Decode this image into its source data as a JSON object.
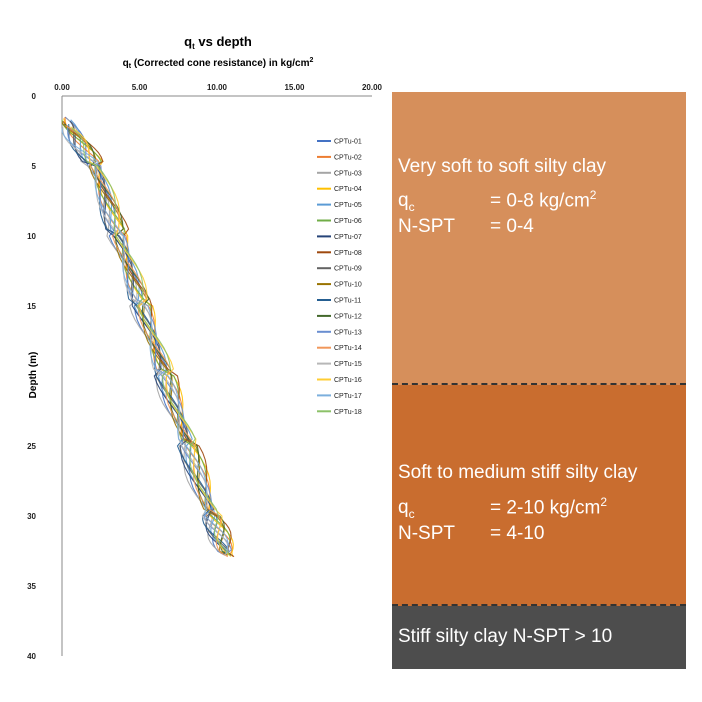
{
  "chart_data": {
    "type": "line",
    "title": "q",
    "title_sub": "t",
    "title_rest": " vs depth",
    "subtitle": "q",
    "subtitle_sub": "t",
    "subtitle_rest": " (Corrected cone resistance) in kg/cm",
    "subtitle_sup": "2",
    "ylabel": "Depth (m)",
    "xlim": [
      0,
      20
    ],
    "ylim": [
      0,
      40
    ],
    "y_reversed": true,
    "x_axis_position": "top",
    "xticks": [
      "0.00",
      "5.00",
      "10.00",
      "15.00",
      "20.00"
    ],
    "yticks": [
      "0",
      "5",
      "10",
      "15",
      "",
      "25",
      "30",
      "35",
      "40"
    ],
    "legend_position": "right",
    "series": [
      {
        "name": "CPTu-01",
        "color": "#4472c4",
        "values": [
          [
            0.2,
            1.5
          ],
          [
            2,
            5
          ],
          [
            3.5,
            10
          ],
          [
            5,
            15
          ],
          [
            6.5,
            20
          ],
          [
            8,
            25
          ],
          [
            9.5,
            30
          ],
          [
            10.5,
            32.8
          ]
        ]
      },
      {
        "name": "CPTu-02",
        "color": "#ed7d31",
        "values": [
          [
            0.3,
            1.5
          ],
          [
            2.2,
            5
          ],
          [
            3.7,
            10
          ],
          [
            5.2,
            15
          ],
          [
            6.7,
            20
          ],
          [
            8.2,
            25
          ],
          [
            9.7,
            30
          ],
          [
            10.8,
            32.8
          ]
        ]
      },
      {
        "name": "CPTu-03",
        "color": "#a5a5a5",
        "values": [
          [
            0.1,
            1.6
          ],
          [
            1.8,
            5
          ],
          [
            3.3,
            10
          ],
          [
            4.8,
            15
          ],
          [
            6.3,
            20
          ],
          [
            7.8,
            25
          ],
          [
            9.3,
            30
          ],
          [
            10.3,
            32.7
          ]
        ]
      },
      {
        "name": "CPTu-04",
        "color": "#ffc000",
        "values": [
          [
            0.4,
            1.6
          ],
          [
            2.4,
            5
          ],
          [
            3.9,
            10
          ],
          [
            5.4,
            15
          ],
          [
            6.9,
            20
          ],
          [
            8.4,
            25
          ],
          [
            9.9,
            30
          ],
          [
            11,
            32.9
          ]
        ]
      },
      {
        "name": "CPTu-05",
        "color": "#5b9bd5",
        "values": [
          [
            0.2,
            1.7
          ],
          [
            2.1,
            5
          ],
          [
            3.6,
            10
          ],
          [
            5.1,
            15
          ],
          [
            6.6,
            20
          ],
          [
            8.1,
            25
          ],
          [
            9.6,
            30
          ],
          [
            10.6,
            32.6
          ]
        ]
      },
      {
        "name": "CPTu-06",
        "color": "#70ad47",
        "values": [
          [
            0.3,
            1.7
          ],
          [
            2.3,
            5
          ],
          [
            3.8,
            10
          ],
          [
            5.3,
            15
          ],
          [
            6.8,
            20
          ],
          [
            8.3,
            25
          ],
          [
            9.8,
            30
          ],
          [
            10.9,
            32.8
          ]
        ]
      },
      {
        "name": "CPTu-07",
        "color": "#264478",
        "values": [
          [
            0.1,
            1.8
          ],
          [
            1.9,
            5
          ],
          [
            3.4,
            10
          ],
          [
            4.9,
            15
          ],
          [
            6.4,
            20
          ],
          [
            7.9,
            25
          ],
          [
            9.4,
            30
          ],
          [
            10.4,
            32.7
          ]
        ]
      },
      {
        "name": "CPTu-08",
        "color": "#9e480e",
        "values": [
          [
            0.5,
            1.8
          ],
          [
            2.5,
            5
          ],
          [
            4,
            10
          ],
          [
            5.5,
            15
          ],
          [
            7,
            20
          ],
          [
            8.5,
            25
          ],
          [
            10,
            30
          ],
          [
            11.1,
            32.9
          ]
        ]
      },
      {
        "name": "CPTu-09",
        "color": "#636363",
        "values": [
          [
            0.2,
            1.9
          ],
          [
            2,
            5
          ],
          [
            3.5,
            10
          ],
          [
            5,
            15
          ],
          [
            6.5,
            20
          ],
          [
            8,
            25
          ],
          [
            9.5,
            30
          ],
          [
            10.5,
            32.8
          ]
        ]
      },
      {
        "name": "CPTu-10",
        "color": "#997300",
        "values": [
          [
            0.3,
            1.9
          ],
          [
            2.2,
            5
          ],
          [
            3.7,
            10
          ],
          [
            5.2,
            15
          ],
          [
            6.7,
            20
          ],
          [
            8.2,
            25
          ],
          [
            9.7,
            30
          ],
          [
            10.7,
            32.8
          ]
        ]
      },
      {
        "name": "CPTu-11",
        "color": "#255e91",
        "values": [
          [
            0.1,
            2
          ],
          [
            1.9,
            5
          ],
          [
            3.4,
            10
          ],
          [
            4.9,
            15
          ],
          [
            6.4,
            20
          ],
          [
            7.9,
            25
          ],
          [
            9.4,
            30
          ],
          [
            10.4,
            32.7
          ]
        ]
      },
      {
        "name": "CPTu-12",
        "color": "#43682b",
        "values": [
          [
            0.4,
            2
          ],
          [
            2.3,
            5
          ],
          [
            3.8,
            10
          ],
          [
            5.3,
            15
          ],
          [
            6.8,
            20
          ],
          [
            8.3,
            25
          ],
          [
            9.8,
            30
          ],
          [
            10.9,
            32.8
          ]
        ]
      },
      {
        "name": "CPTu-13",
        "color": "#698ed0",
        "values": [
          [
            0.2,
            2.1
          ],
          [
            2.1,
            5
          ],
          [
            3.6,
            10
          ],
          [
            5.1,
            15
          ],
          [
            6.6,
            20
          ],
          [
            8.1,
            25
          ],
          [
            9.6,
            30
          ],
          [
            10.6,
            32.7
          ]
        ]
      },
      {
        "name": "CPTu-14",
        "color": "#f1975a",
        "values": [
          [
            0.3,
            2.1
          ],
          [
            2.2,
            5
          ],
          [
            3.7,
            10
          ],
          [
            5.2,
            15
          ],
          [
            6.7,
            20
          ],
          [
            8.2,
            25
          ],
          [
            9.7,
            30
          ],
          [
            10.7,
            32.9
          ]
        ]
      },
      {
        "name": "CPTu-15",
        "color": "#b7b7b7",
        "values": [
          [
            0.1,
            2.2
          ],
          [
            2,
            5
          ],
          [
            3.5,
            10
          ],
          [
            5,
            15
          ],
          [
            6.5,
            20
          ],
          [
            8,
            25
          ],
          [
            9.5,
            30
          ],
          [
            10.5,
            32.8
          ]
        ]
      },
      {
        "name": "CPTu-16",
        "color": "#ffcd33",
        "values": [
          [
            0.4,
            2.2
          ],
          [
            2.4,
            5
          ],
          [
            3.9,
            10
          ],
          [
            5.4,
            15
          ],
          [
            6.9,
            20
          ],
          [
            8.4,
            25
          ],
          [
            9.9,
            30
          ],
          [
            10.9,
            32.9
          ]
        ]
      },
      {
        "name": "CPTu-17",
        "color": "#7cafdd",
        "values": [
          [
            0.2,
            2.3
          ],
          [
            2.1,
            5
          ],
          [
            3.6,
            10
          ],
          [
            5.1,
            15
          ],
          [
            6.6,
            20
          ],
          [
            8.1,
            25
          ],
          [
            9.6,
            30
          ],
          [
            10.6,
            32.7
          ]
        ]
      },
      {
        "name": "CPTu-18",
        "color": "#8cc168",
        "values": [
          [
            0.3,
            2.3
          ],
          [
            2.3,
            5
          ],
          [
            3.8,
            10
          ],
          [
            5.3,
            15
          ],
          [
            6.8,
            20
          ],
          [
            8.3,
            25
          ],
          [
            9.8,
            30
          ],
          [
            10.8,
            32.8
          ]
        ]
      }
    ]
  },
  "strata": [
    {
      "name": "Very soft to soft silty clay",
      "qc_label": "q",
      "qc_sub": "c",
      "qc_value": "= 0-8 kg/cm",
      "qc_sup": "2",
      "nspt_label": "N-SPT",
      "nspt_value": "= 0-4",
      "color": "#d68f5b"
    },
    {
      "name": "Soft to medium stiff silty clay",
      "qc_label": "q",
      "qc_sub": "c",
      "qc_value": "= 2-10 kg/cm",
      "qc_sup": "2",
      "nspt_label": "N-SPT",
      "nspt_value": "= 4-10",
      "color": "#c96d2f"
    },
    {
      "name": "Stiff silty clay N-SPT > 10",
      "color": "#4d4d4d"
    }
  ]
}
